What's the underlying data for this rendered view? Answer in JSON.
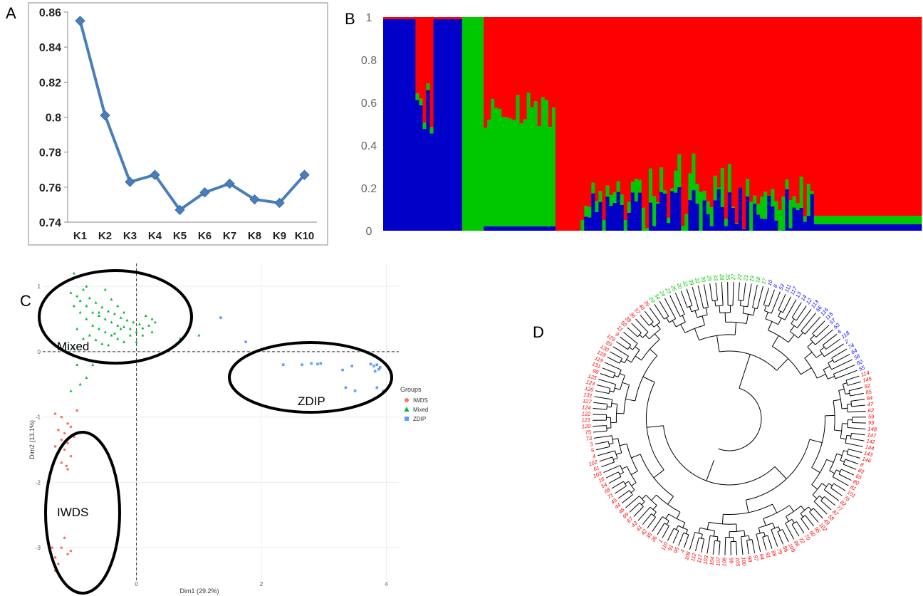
{
  "panels": {
    "A": "A",
    "B": "B",
    "C": "C",
    "D": "D"
  },
  "chart_data": [
    {
      "panel": "A",
      "type": "line",
      "categories": [
        "K1",
        "K2",
        "K3",
        "K4",
        "K5",
        "K6",
        "K7",
        "K8",
        "K9",
        "K10"
      ],
      "values": [
        0.855,
        0.801,
        0.763,
        0.767,
        0.747,
        0.757,
        0.762,
        0.753,
        0.751,
        0.767
      ],
      "ylim": [
        0.74,
        0.86
      ],
      "yticks": [
        "0.74",
        "0.76",
        "0.78",
        "0.8",
        "0.82",
        "0.84",
        "0.86"
      ],
      "grid": false,
      "color": "#4a7ebb"
    },
    {
      "panel": "B",
      "type": "bar",
      "stacked": true,
      "n_individuals": 150,
      "yticks": [
        "0",
        "0.2",
        "0.4",
        "0.6",
        "0.8",
        "1"
      ],
      "ylim": [
        0,
        1
      ],
      "colors": {
        "blue": "#0000c8",
        "green": "#00c800",
        "red": "#ff0000"
      },
      "blocks": [
        {
          "from": 1,
          "to": 9,
          "blue": 0.99,
          "green": 0.0
        },
        {
          "from": 10,
          "to": 14,
          "blue": 0.55,
          "green": 0.03
        },
        {
          "from": 15,
          "to": 22,
          "blue": 0.99,
          "green": 0.0
        },
        {
          "from": 23,
          "to": 28,
          "blue": 0.0,
          "green": 1.0
        },
        {
          "from": 29,
          "to": 38,
          "blue": 0.02,
          "green": 0.53
        },
        {
          "from": 39,
          "to": 48,
          "blue": 0.02,
          "green": 0.55
        },
        {
          "from": 49,
          "to": 55,
          "blue": 0.0,
          "green": 0.0
        },
        {
          "from": 56,
          "to": 70,
          "blue": 0.08,
          "green": 0.05
        },
        {
          "from": 71,
          "to": 95,
          "blue": 0.08,
          "green": 0.1
        },
        {
          "from": 96,
          "to": 120,
          "blue": 0.1,
          "green": 0.06
        },
        {
          "from": 121,
          "to": 150,
          "blue": 0.03,
          "green": 0.04
        }
      ]
    },
    {
      "panel": "C",
      "type": "scatter",
      "xlabel": "Dim1 (29.2%)",
      "ylabel": "Dim2 (13.1%)",
      "xlim": [
        -1.5,
        4.2
      ],
      "ylim": [
        -3.5,
        1.35
      ],
      "xticks": [
        "0",
        "2",
        "4"
      ],
      "yticks": [
        "1",
        "0",
        "-1",
        "-2",
        "-3"
      ],
      "legend": {
        "title": "Groups",
        "position": "right"
      },
      "series": [
        {
          "name": "IWDS",
          "color": "#f8766d",
          "points": [
            [
              -1.2,
              -1.0
            ],
            [
              -1.1,
              -1.1
            ],
            [
              -1.25,
              -1.2
            ],
            [
              -1.15,
              -1.25
            ],
            [
              -1.05,
              -1.15
            ],
            [
              -1.2,
              -1.35
            ],
            [
              -1.1,
              -1.4
            ],
            [
              -1.3,
              -1.45
            ],
            [
              -1.0,
              -1.3
            ],
            [
              -1.15,
              -1.5
            ],
            [
              -1.25,
              -1.55
            ],
            [
              -1.05,
              -1.6
            ],
            [
              -1.2,
              -1.7
            ],
            [
              -1.1,
              -1.8
            ],
            [
              -0.95,
              -0.9
            ],
            [
              -1.3,
              -0.95
            ],
            [
              -1.12,
              -1.75
            ],
            [
              -1.2,
              -3.0
            ],
            [
              -1.35,
              -3.0
            ],
            [
              -1.1,
              -3.1
            ],
            [
              -1.3,
              -3.15
            ],
            [
              -1.25,
              -3.25
            ],
            [
              -1.15,
              -2.85
            ],
            [
              -1.05,
              -3.05
            ],
            [
              -1.3,
              -3.35
            ]
          ]
        },
        {
          "name": "Mixed",
          "color": "#00ba38",
          "points": [
            [
              -1.05,
              0.9
            ],
            [
              -0.95,
              0.85
            ],
            [
              -0.9,
              0.78
            ],
            [
              -0.85,
              0.95
            ],
            [
              -0.8,
              0.7
            ],
            [
              -0.75,
              0.82
            ],
            [
              -0.7,
              0.6
            ],
            [
              -0.65,
              0.75
            ],
            [
              -0.6,
              0.55
            ],
            [
              -0.55,
              0.68
            ],
            [
              -0.5,
              0.5
            ],
            [
              -0.45,
              0.62
            ],
            [
              -0.4,
              0.45
            ],
            [
              -0.35,
              0.58
            ],
            [
              -0.3,
              0.4
            ],
            [
              -0.25,
              0.52
            ],
            [
              -0.2,
              0.38
            ],
            [
              -0.15,
              0.48
            ],
            [
              -0.1,
              0.35
            ],
            [
              -0.05,
              0.45
            ],
            [
              0.0,
              0.3
            ],
            [
              0.05,
              0.42
            ],
            [
              0.1,
              0.36
            ],
            [
              0.15,
              0.55
            ],
            [
              0.2,
              0.4
            ],
            [
              0.25,
              0.5
            ],
            [
              -1.0,
              0.7
            ],
            [
              -0.9,
              0.6
            ],
            [
              -0.8,
              0.5
            ],
            [
              -0.7,
              0.4
            ],
            [
              -0.6,
              0.35
            ],
            [
              -0.5,
              0.3
            ],
            [
              -0.4,
              0.25
            ],
            [
              -0.3,
              0.2
            ],
            [
              -0.2,
              0.15
            ],
            [
              -0.1,
              0.25
            ],
            [
              0.0,
              0.15
            ],
            [
              0.1,
              0.25
            ],
            [
              -0.95,
              0.35
            ],
            [
              -0.85,
              0.2
            ],
            [
              -0.75,
              0.25
            ],
            [
              -0.65,
              0.18
            ],
            [
              -0.55,
              0.12
            ],
            [
              -0.45,
              0.1
            ],
            [
              -0.35,
              0.28
            ],
            [
              -0.25,
              0.35
            ],
            [
              -1.0,
              1.2
            ],
            [
              -0.5,
              0.95
            ],
            [
              -0.8,
              1.0
            ],
            [
              -0.3,
              0.7
            ],
            [
              0.25,
              0.3
            ],
            [
              0.3,
              0.45
            ],
            [
              -1.0,
              0.05
            ],
            [
              -0.95,
              -0.2
            ],
            [
              -0.7,
              -0.2
            ],
            [
              -0.9,
              -0.5
            ],
            [
              -0.8,
              -0.4
            ],
            [
              -1.05,
              -0.6
            ],
            [
              0.7,
              0.2
            ],
            [
              1.0,
              0.25
            ],
            [
              -0.6,
              0.6
            ],
            [
              -0.4,
              0.8
            ],
            [
              -0.2,
              0.6
            ]
          ]
        },
        {
          "name": "ZDIP",
          "color": "#619cff",
          "points": [
            [
              1.35,
              0.52
            ],
            [
              1.75,
              0.15
            ],
            [
              2.35,
              -0.2
            ],
            [
              2.65,
              -0.2
            ],
            [
              2.8,
              -0.18
            ],
            [
              2.9,
              -0.19
            ],
            [
              2.95,
              -0.18
            ],
            [
              3.3,
              -0.28
            ],
            [
              3.45,
              -0.22
            ],
            [
              3.75,
              -0.19
            ],
            [
              3.8,
              -0.22
            ],
            [
              3.85,
              -0.2
            ],
            [
              3.9,
              -0.24
            ],
            [
              3.88,
              -0.27
            ],
            [
              3.82,
              -0.3
            ],
            [
              3.35,
              -0.55
            ],
            [
              3.5,
              -0.6
            ],
            [
              3.85,
              -0.55
            ],
            [
              3.95,
              -0.6
            ]
          ]
        }
      ]
    },
    {
      "panel": "D",
      "type": "dendrogram",
      "leaf_colors": {
        "green": "#00c800",
        "blue": "#0000ff",
        "red": "#ff0000"
      },
      "green_leaves": [
        "29",
        "34",
        "24",
        "23",
        "26",
        "20",
        "32",
        "39",
        "31",
        "30",
        "25",
        "33",
        "28",
        "35",
        "27",
        "22",
        "21",
        "19",
        "18",
        "17"
      ],
      "blue_leaves": [
        "10",
        "8",
        "53",
        "111",
        "117",
        "13",
        "14",
        "12",
        "113",
        "66",
        "116",
        "115",
        "57",
        "63",
        "6",
        "118",
        "2",
        "74",
        "64",
        "56",
        "60",
        "55"
      ],
      "red_leaves": [
        "114",
        "145",
        "92",
        "85",
        "84",
        "47",
        "62",
        "59",
        "93",
        "148",
        "147",
        "142",
        "144",
        "143",
        "146",
        "8",
        "83",
        "65",
        "80",
        "81",
        "101",
        "76",
        "82",
        "77",
        "87",
        "58",
        "49",
        "102",
        "95",
        "90",
        "70",
        "72",
        "96",
        "109",
        "86",
        "79",
        "88",
        "91",
        "94",
        "97",
        "98",
        "100",
        "105",
        "99",
        "108",
        "107",
        "104",
        "103",
        "117",
        "112",
        "106",
        "4",
        "95",
        "91",
        "110",
        "1",
        "36",
        "35",
        "42",
        "41",
        "43",
        "67",
        "69",
        "46",
        "44",
        "45",
        "71",
        "68",
        "54",
        "16",
        "103",
        "61",
        "102",
        "4",
        "5",
        "3",
        "73",
        "75",
        "120",
        "121",
        "122",
        "124",
        "127",
        "131",
        "126",
        "123",
        "125",
        "98",
        "131",
        "119",
        "128",
        "130",
        "89",
        "129",
        "9",
        "11",
        "50",
        "38",
        "36",
        "37",
        "40",
        "39"
      ]
    }
  ]
}
